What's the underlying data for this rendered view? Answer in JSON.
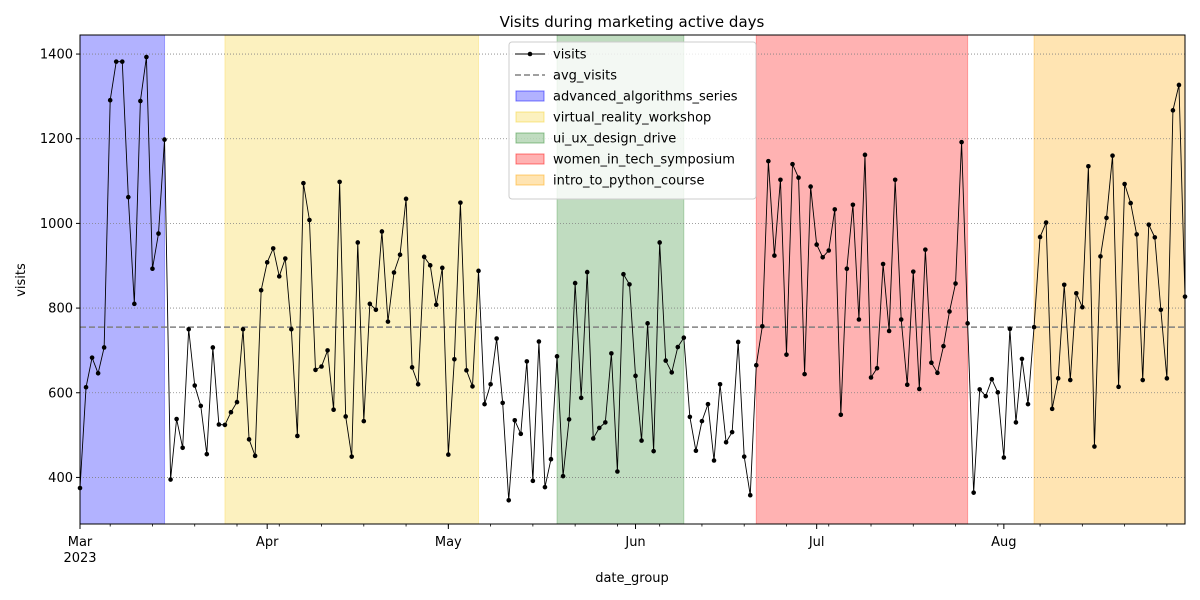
{
  "chart_data": {
    "type": "line",
    "title": "Visits during marketing active days",
    "xlabel": "date_group",
    "ylabel": "visits",
    "x_range": [
      "2023-03-01",
      "2023-08-31"
    ],
    "ylim": [
      290,
      1445
    ],
    "y_ticks": [
      400,
      600,
      800,
      1000,
      1200,
      1400
    ],
    "x_ticks": [
      {
        "date": "2023-03-01",
        "label": "Mar",
        "sublabel": "2023"
      },
      {
        "date": "2023-04-01",
        "label": "Apr",
        "sublabel": ""
      },
      {
        "date": "2023-05-01",
        "label": "May",
        "sublabel": ""
      },
      {
        "date": "2023-06-01",
        "label": "Jun",
        "sublabel": ""
      },
      {
        "date": "2023-07-01",
        "label": "Jul",
        "sublabel": ""
      },
      {
        "date": "2023-08-01",
        "label": "Aug",
        "sublabel": ""
      }
    ],
    "grid": "horizontal dotted",
    "legend_position": "top-center",
    "series": [
      {
        "name": "visits",
        "color": "#000000",
        "start_date": "2023-03-01",
        "values": [
          375,
          613,
          683,
          646,
          707,
          1291,
          1382,
          1382,
          1062,
          810,
          1289,
          1393,
          893,
          976,
          1198,
          395,
          538,
          470,
          750,
          617,
          569,
          455,
          707,
          525,
          524,
          554,
          578,
          750,
          490,
          451,
          842,
          908,
          941,
          875,
          917,
          750,
          498,
          1095,
          1008,
          654,
          662,
          700,
          560,
          1098,
          544,
          449,
          955,
          533,
          810,
          796,
          981,
          768,
          884,
          926,
          1058,
          660,
          620,
          921,
          901,
          808,
          895,
          454,
          679,
          1049,
          653,
          615,
          888,
          573,
          620,
          728,
          576,
          346,
          535,
          503,
          674,
          392,
          721,
          377,
          443,
          686,
          403,
          537,
          859,
          588,
          885,
          492,
          517,
          530,
          693,
          414,
          880,
          856,
          640,
          487,
          764,
          462,
          955,
          676,
          648,
          708,
          730,
          543,
          463,
          533,
          573,
          440,
          620,
          483,
          507,
          720,
          449,
          358,
          665,
          757,
          1147,
          924,
          1103,
          690,
          1140,
          1108,
          644,
          1087,
          950,
          920,
          936,
          1033,
          548,
          893,
          1044,
          773,
          1162,
          636,
          658,
          904,
          746,
          1103,
          773,
          619,
          886,
          609,
          938,
          671,
          647,
          710,
          792,
          858,
          1192,
          764,
          364,
          608,
          592,
          632,
          601,
          447,
          751,
          530,
          680,
          573,
          755,
          968,
          1002,
          562,
          634,
          855,
          630,
          835,
          802,
          1135,
          473,
          922,
          1013,
          1160,
          614,
          1093,
          1048,
          974,
          630,
          997,
          967,
          796,
          634,
          1267,
          1327,
          827
        ]
      },
      {
        "name": "avg_visits",
        "color": "#808080",
        "value": 755
      }
    ],
    "campaigns": [
      {
        "name": "advanced_algorithms_series",
        "start": "2023-03-01",
        "end": "2023-03-15",
        "color": "#0000ff"
      },
      {
        "name": "virtual_reality_workshop",
        "start": "2023-03-25",
        "end": "2023-05-06",
        "color": "#f5d22a"
      },
      {
        "name": "ui_ux_design_drive",
        "start": "2023-05-19",
        "end": "2023-06-09",
        "color": "#2e8b2e"
      },
      {
        "name": "women_in_tech_symposium",
        "start": "2023-06-21",
        "end": "2023-07-26",
        "color": "#ff0000"
      },
      {
        "name": "intro_to_python_course",
        "start": "2023-08-06",
        "end": "2023-08-31",
        "color": "#ffa500"
      }
    ]
  }
}
